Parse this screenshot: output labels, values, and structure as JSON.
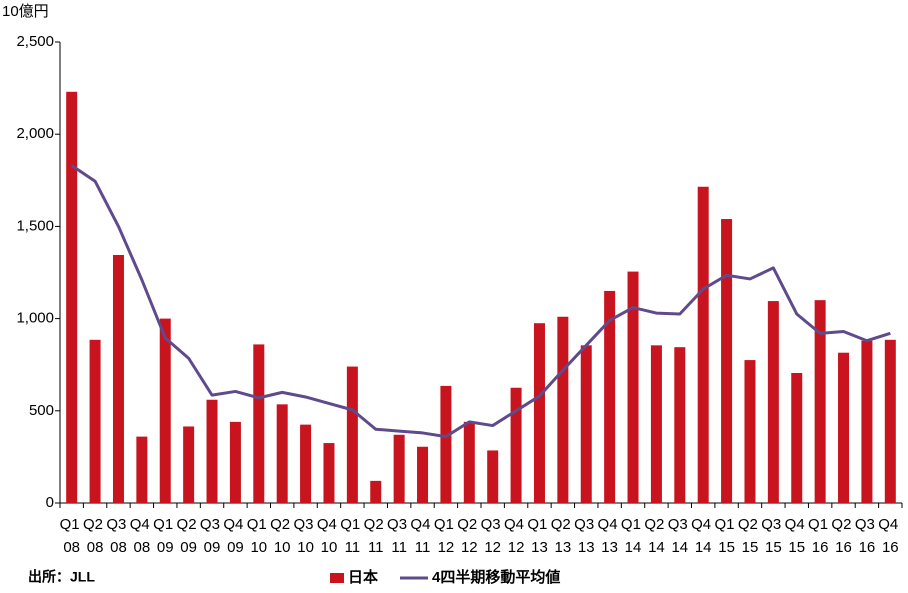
{
  "chart_data": {
    "type": "bar",
    "unit_label": "10億円",
    "source": "出所：JLL",
    "categories": [
      "Q1 08",
      "Q2 08",
      "Q3 08",
      "Q4 08",
      "Q1 09",
      "Q2 09",
      "Q3 09",
      "Q4 09",
      "Q1 10",
      "Q2 10",
      "Q3 10",
      "Q4 10",
      "Q1 11",
      "Q2 11",
      "Q3 11",
      "Q4 11",
      "Q1 12",
      "Q2 12",
      "Q3 12",
      "Q4 12",
      "Q1 13",
      "Q2 13",
      "Q3 13",
      "Q4 13",
      "Q1 14",
      "Q2 14",
      "Q3 14",
      "Q4 14",
      "Q1 15",
      "Q2 15",
      "Q3 15",
      "Q4 15",
      "Q1 16",
      "Q2 16",
      "Q3 16",
      "Q4 16"
    ],
    "series": [
      {
        "name": "日本",
        "type": "bar",
        "color": "#c8141e",
        "values": [
          2230,
          885,
          1345,
          360,
          1000,
          415,
          560,
          440,
          860,
          535,
          425,
          325,
          740,
          120,
          370,
          305,
          635,
          440,
          285,
          625,
          975,
          1010,
          855,
          1150,
          1255,
          855,
          845,
          1715,
          1540,
          775,
          1095,
          705,
          1100,
          815,
          880,
          885
        ]
      },
      {
        "name": "4四半期移動平均値",
        "type": "line",
        "color": "#5f4b8b",
        "values": [
          1830,
          1745,
          1500,
          1210,
          895,
          785,
          585,
          605,
          570,
          600,
          575,
          540,
          505,
          400,
          390,
          380,
          360,
          440,
          420,
          500,
          580,
          720,
          855,
          990,
          1060,
          1030,
          1025,
          1160,
          1235,
          1215,
          1275,
          1025,
          920,
          930,
          880,
          920
        ]
      }
    ],
    "ylim": [
      0,
      2500
    ],
    "yticks": [
      0,
      500,
      {
        "value": 1000,
        "label": "1,000"
      },
      {
        "value": 1500,
        "label": "1,500"
      },
      {
        "value": 2000,
        "label": "2,000"
      },
      {
        "value": 2500,
        "label": "2,500"
      }
    ],
    "grid": false,
    "legend": "bottom"
  }
}
